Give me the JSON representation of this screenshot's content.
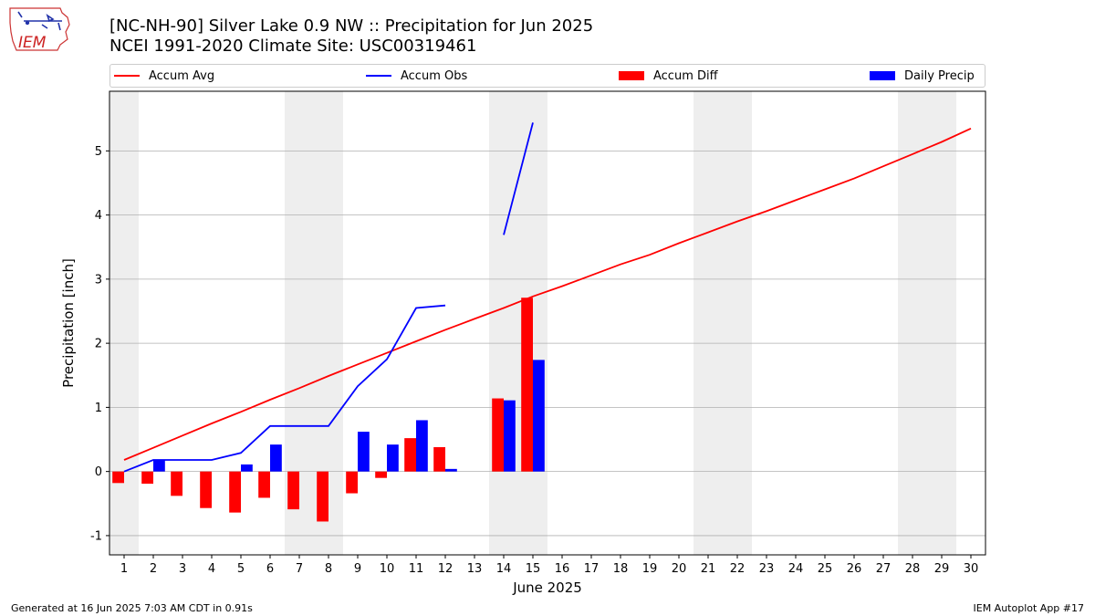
{
  "header": {
    "title_line1": "[NC-NH-90] Silver Lake 0.9 NW :: Precipitation for Jun 2025",
    "title_line2": "NCEI 1991-2020 Climate Site: USC00319461",
    "logo_text": "IEM"
  },
  "footer": {
    "generated": "Generated at 16 Jun 2025 7:03 AM CDT in 0.91s",
    "app": "IEM Autoplot App #17"
  },
  "colors": {
    "avg": "#ff0000",
    "obs": "#0000ff",
    "diff": "#ff0000",
    "daily": "#0000ff",
    "weekend_band": "#eeeeee",
    "grid": "#b0b0b0"
  },
  "chart_data": {
    "type": "bar",
    "xlabel": "June 2025",
    "ylabel": "Precipitation [inch]",
    "xlim": [
      0.5,
      30.5
    ],
    "ylim": [
      -1.3,
      5.93
    ],
    "yticks": [
      -1,
      0,
      1,
      2,
      3,
      4,
      5
    ],
    "x": [
      1,
      2,
      3,
      4,
      5,
      6,
      7,
      8,
      9,
      10,
      11,
      12,
      13,
      14,
      15,
      16,
      17,
      18,
      19,
      20,
      21,
      22,
      23,
      24,
      25,
      26,
      27,
      28,
      29,
      30
    ],
    "weekend_days": [
      1,
      7,
      8,
      14,
      15,
      21,
      22,
      28,
      29
    ],
    "grid": "horizontal",
    "legend_position": "top",
    "series": [
      {
        "name": "Accum Avg",
        "kind": "line",
        "values": [
          0.18,
          0.37,
          0.56,
          0.75,
          0.93,
          1.12,
          1.3,
          1.49,
          1.67,
          1.85,
          2.03,
          2.21,
          2.38,
          2.55,
          2.73,
          2.89,
          3.06,
          3.23,
          3.38,
          3.56,
          3.73,
          3.9,
          4.06,
          4.23,
          4.4,
          4.57,
          4.76,
          4.95,
          5.14,
          5.35
        ]
      },
      {
        "name": "Accum Obs",
        "kind": "line",
        "values": [
          0.0,
          0.18,
          0.18,
          0.18,
          0.29,
          0.71,
          0.71,
          0.71,
          1.33,
          1.75,
          2.55,
          2.59,
          null,
          3.69,
          5.44,
          null,
          null,
          null,
          null,
          null,
          null,
          null,
          null,
          null,
          null,
          null,
          null,
          null,
          null,
          null
        ]
      },
      {
        "name": "Accum Diff",
        "kind": "bar",
        "values": [
          -0.18,
          -0.19,
          -0.38,
          -0.57,
          -0.64,
          -0.41,
          -0.59,
          -0.78,
          -0.34,
          -0.1,
          0.52,
          0.38,
          null,
          1.14,
          2.71,
          null,
          null,
          null,
          null,
          null,
          null,
          null,
          null,
          null,
          null,
          null,
          null,
          null,
          null,
          null
        ]
      },
      {
        "name": "Daily Precip",
        "kind": "bar",
        "values": [
          0.0,
          0.18,
          0.0,
          0.0,
          0.11,
          0.42,
          0.0,
          0.0,
          0.62,
          0.42,
          0.8,
          0.04,
          null,
          1.11,
          1.74,
          null,
          null,
          null,
          null,
          null,
          null,
          null,
          null,
          null,
          null,
          null,
          null,
          null,
          null,
          null
        ]
      }
    ]
  }
}
